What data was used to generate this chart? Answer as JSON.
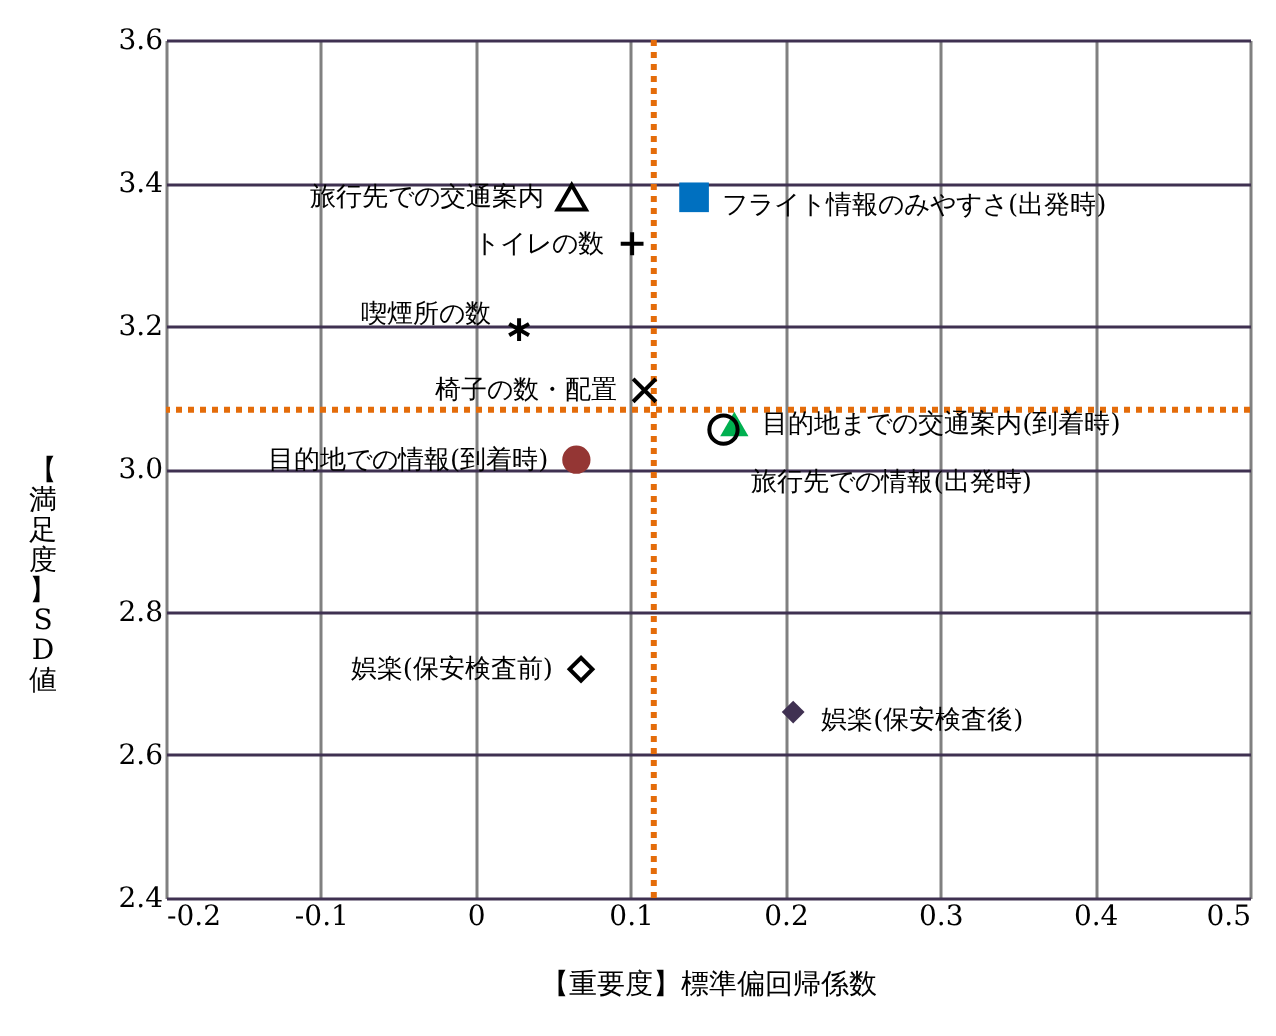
{
  "chart_data": {
    "type": "scatter",
    "xlabel": "【重要度】標準偏回帰係数",
    "ylabel": "【満足度】SD値",
    "xlim": [
      -0.2,
      0.5
    ],
    "xticks": [
      -0.2,
      -0.1,
      0,
      0.1,
      0.2,
      0.3,
      0.4,
      0.5
    ],
    "ylim": [
      2.4,
      3.6
    ],
    "yticks": [
      2.4,
      2.6,
      2.8,
      {
        "value": 3,
        "label": "3.0"
      },
      3.2,
      3.4,
      3.6
    ],
    "grid": true,
    "ref_lines": [
      {
        "axis": "x",
        "value": 0.115,
        "color": "#e46c0a",
        "line_style": "dotted"
      },
      {
        "axis": "y",
        "value": 3.083,
        "color": "#e46c0a",
        "line_style": "dotted"
      }
    ],
    "series": [
      {
        "name": "旅行先での交通案内",
        "color": "#000000",
        "marker": "triangle",
        "x": [
          0.062
        ],
        "values": [
          3.38
        ]
      },
      {
        "name": "フライト情報のみやすさ(出発時)",
        "color": "#0070c0",
        "marker": "square",
        "x": [
          0.141
        ],
        "values": [
          3.38
        ]
      },
      {
        "name": "トイレの数",
        "color": "#000000",
        "marker": "cross",
        "x": [
          0.101
        ],
        "values": [
          3.315
        ]
      },
      {
        "name": "喫煙所の数",
        "color": "#000000",
        "marker": "cross",
        "x": [
          0.028
        ],
        "values": [
          3.195
        ]
      },
      {
        "name": "椅子の数・配置",
        "color": "#000000",
        "marker": "cross",
        "x": [
          0.109
        ],
        "values": [
          3.11
        ]
      },
      {
        "name": "目的地までの交通案内(到着時)",
        "color": "#00b050",
        "marker": "triangle",
        "x": [
          0.167
        ],
        "values": [
          3.063
        ]
      },
      {
        "name": "旅行先での情報(出発時)",
        "color": "#000000",
        "marker": "circle",
        "x": [
          0.16
        ],
        "values": [
          3.055
        ]
      },
      {
        "name": "目的地での情報(到着時)",
        "color": "#943634",
        "marker": "circle",
        "x": [
          0.065
        ],
        "values": [
          3.013
        ]
      },
      {
        "name": "娯楽(保安検査前)",
        "color": "#000000",
        "marker": "diamond",
        "x": [
          0.068
        ],
        "values": [
          2.72
        ]
      },
      {
        "name": "娯楽(保安検査後)",
        "color": "#403152",
        "marker": "diamond",
        "x": [
          0.205
        ],
        "values": [
          2.66
        ]
      }
    ]
  }
}
